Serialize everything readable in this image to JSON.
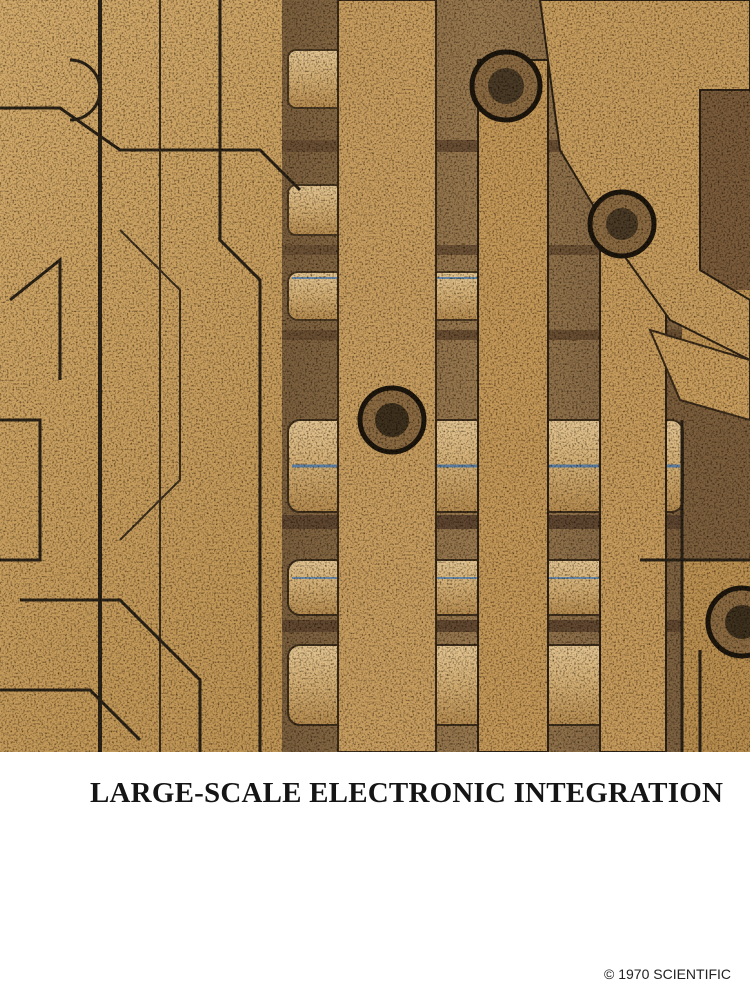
{
  "cover": {
    "photo": {
      "subject": "integrated-circuit-micrograph",
      "colors": {
        "gold": "#c99f5f",
        "bronze": "#8d6e47",
        "dark_trace": "#2c2418",
        "blue_line": "#5c7fa4"
      }
    },
    "headline": "LARGE-SCALE ELECTRONIC INTEGRATION",
    "copyright": "© 1970 SCIENTIFIC"
  }
}
